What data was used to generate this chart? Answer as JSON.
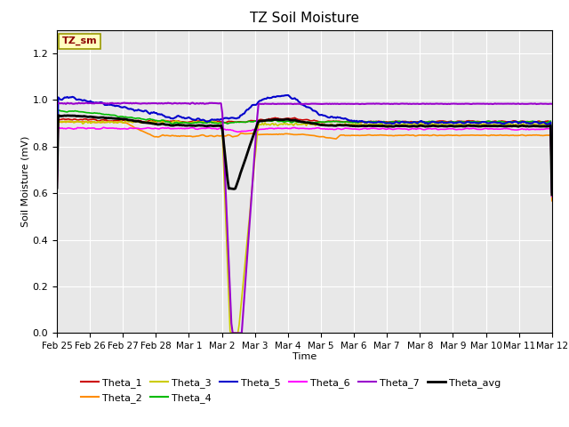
{
  "title": "TZ Soil Moisture",
  "xlabel": "Time",
  "ylabel": "Soil Moisture (mV)",
  "ylim": [
    0.0,
    1.3
  ],
  "yticks": [
    0.0,
    0.2,
    0.4,
    0.6,
    0.8,
    1.0,
    1.2
  ],
  "plot_bg": "#e8e8e8",
  "fig_bg": "#ffffff",
  "annotation_text": "TZ_sm",
  "annotation_color": "#8b0000",
  "annotation_bg": "#ffffc0",
  "annotation_edge": "#999900",
  "line_colors": {
    "Theta_1": "#cc0000",
    "Theta_2": "#ff8c00",
    "Theta_3": "#cccc00",
    "Theta_4": "#00bb00",
    "Theta_5": "#0000cc",
    "Theta_6": "#ff00ff",
    "Theta_7": "#9900cc",
    "Theta_avg": "#000000"
  },
  "line_widths": {
    "Theta_1": 1.2,
    "Theta_2": 1.2,
    "Theta_3": 1.2,
    "Theta_4": 1.2,
    "Theta_5": 1.5,
    "Theta_6": 1.2,
    "Theta_7": 1.5,
    "Theta_avg": 2.0
  },
  "xtick_labels": [
    "Feb 25",
    "Feb 26",
    "Feb 27",
    "Feb 28",
    "Mar 1",
    "Mar 2",
    "Mar 3",
    "Mar 4",
    "Mar 5",
    "Mar 6",
    "Mar 7",
    "Mar 8",
    "Mar 9",
    "Mar 10",
    "Mar 11",
    "Mar 12"
  ],
  "num_days": 16
}
